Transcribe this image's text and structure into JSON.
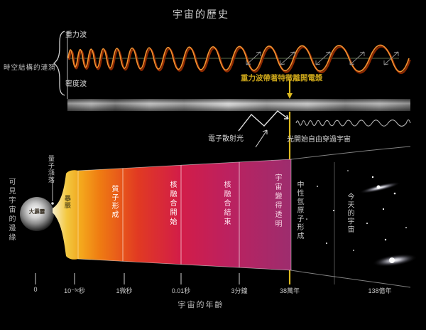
{
  "title": "宇宙的歷史",
  "top_panel": {
    "brace_label": "時空結構的漣漪",
    "gravitational_wave_label": "重力波",
    "density_wave_label": "密度波",
    "imprint_label": "重力波帶著特徵離開電漿",
    "electron_scatter_label": "電子散射光",
    "free_light_label": "光開始自由穿過宇宙"
  },
  "main": {
    "edge_of_universe_label": "可見宇宙的邊緣",
    "quantum_fluctuation_label": "量子漲落",
    "big_bang_label": "大霹靂",
    "inflation_label": "暴脹",
    "stages": [
      {
        "label": "質子形成"
      },
      {
        "label": "核融合開始"
      },
      {
        "label": "核融合結束"
      },
      {
        "label": "宇宙變得透明"
      },
      {
        "label": "中性氫原子形成"
      },
      {
        "label": "今天的宇宙"
      }
    ]
  },
  "axis": {
    "title": "宇宙的年齡",
    "ticks": [
      {
        "label": "0"
      },
      {
        "label": "10⁻³²秒"
      },
      {
        "label": "1微秒"
      },
      {
        "label": "0.01秒"
      },
      {
        "label": "3分鐘"
      },
      {
        "label": "38萬年"
      },
      {
        "label": "138億年"
      }
    ]
  },
  "colors": {
    "background": "#000000",
    "wave_orange": "#f09030",
    "wave_dark_red": "#8a2800",
    "highlight_yellow": "#ddb91e",
    "band_start": "#f5ae1e",
    "band_end": "#9d2d6e"
  }
}
